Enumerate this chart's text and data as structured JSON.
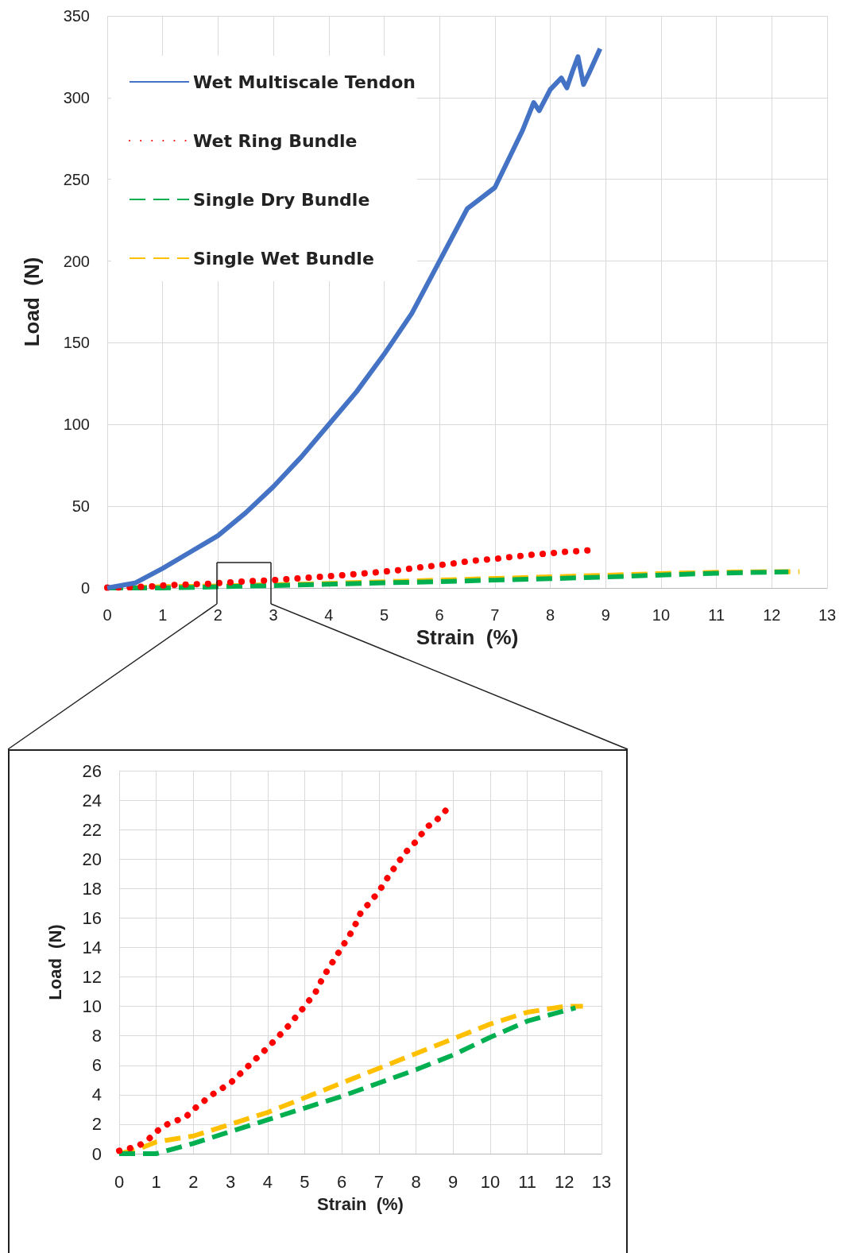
{
  "chart_data": [
    {
      "type": "line",
      "xlabel": "Strain  (%)",
      "ylabel": "Load  (N)",
      "xlim": [
        0,
        13
      ],
      "xticks": [
        0,
        1,
        2,
        3,
        4,
        5,
        6,
        7,
        8,
        9,
        10,
        11,
        12,
        13
      ],
      "ylim": [
        0,
        350
      ],
      "yticks": [
        0,
        50,
        100,
        150,
        200,
        250,
        300,
        350
      ],
      "grid": true,
      "legend": "top left",
      "marker": "none",
      "series": [
        {
          "name": "Wet Multiscale Tendon",
          "color": "#4472c4",
          "line_style": "solid",
          "x": [
            0,
            0.5,
            1,
            1.5,
            2,
            2.5,
            3,
            3.5,
            4,
            4.5,
            5,
            5.5,
            6,
            6.5,
            7,
            7.5,
            7.7,
            7.8,
            8,
            8.2,
            8.3,
            8.4,
            8.5,
            8.6,
            8.7,
            8.9
          ],
          "values": [
            0,
            3,
            12,
            22,
            32,
            46,
            62,
            80,
            100,
            120,
            143,
            168,
            200,
            232,
            245,
            280,
            297,
            292,
            305,
            312,
            306,
            316,
            325,
            308,
            315,
            330
          ]
        },
        {
          "name": "Wet Ring Bundle",
          "color": "#ff0000",
          "line_style": "dotted",
          "x": [
            0,
            0.5,
            0.8,
            1,
            1.3,
            1.8,
            2,
            2.5,
            3,
            3.5,
            4,
            4.5,
            5,
            5.3,
            5.5,
            6,
            6.3,
            6.5,
            7,
            7.3,
            7.7,
            8,
            8.3,
            8.5,
            8.8
          ],
          "values": [
            0.2,
            0.5,
            1,
            1.5,
            2,
            2.5,
            3,
            4,
            4.8,
            6,
            7.2,
            8.5,
            10,
            11,
            12,
            14,
            15.2,
            16.3,
            17.8,
            19,
            20.4,
            21.2,
            22.2,
            22.5,
            23.3
          ]
        },
        {
          "name": "Single Dry Bundle",
          "color": "#00b050",
          "line_style": "dashed",
          "x": [
            0,
            1,
            2,
            3,
            4,
            5,
            6,
            7,
            8,
            9,
            10,
            11,
            12,
            12.3
          ],
          "values": [
            0,
            0,
            0.7,
            1.5,
            2.3,
            3.1,
            3.9,
            4.8,
            5.7,
            6.7,
            7.9,
            9,
            9.7,
            9.9
          ]
        },
        {
          "name": "Single Wet Bundle",
          "color": "#ffc000",
          "line_style": "dashed",
          "x": [
            0,
            0.5,
            1,
            2,
            3,
            4,
            5,
            6,
            7,
            8,
            9,
            10,
            11,
            12,
            12.5
          ],
          "values": [
            0,
            0.3,
            0.8,
            1.2,
            2,
            2.8,
            3.8,
            4.8,
            5.8,
            6.8,
            7.8,
            8.8,
            9.6,
            10,
            10
          ]
        }
      ]
    },
    {
      "type": "line",
      "xlabel": "Strain  (%)",
      "ylabel": "Load  (N)",
      "xlim": [
        0,
        13
      ],
      "xticks": [
        0,
        1,
        2,
        3,
        4,
        5,
        6,
        7,
        8,
        9,
        10,
        11,
        12,
        13
      ],
      "ylim": [
        0,
        26
      ],
      "yticks": [
        0,
        2,
        4,
        6,
        8,
        10,
        12,
        14,
        16,
        18,
        20,
        22,
        24,
        26
      ],
      "grid": true,
      "marker": "none",
      "series": [
        {
          "color": "#ff0000",
          "line_style": "dotted",
          "x": [
            0,
            0.5,
            0.8,
            1,
            1.3,
            1.8,
            2,
            2.5,
            3,
            3.5,
            4,
            4.5,
            5,
            5.3,
            5.5,
            6,
            6.3,
            6.5,
            7,
            7.3,
            7.7,
            8,
            8.3,
            8.5,
            8.8
          ],
          "values": [
            0.2,
            0.5,
            1,
            1.5,
            2,
            2.5,
            3,
            4,
            4.8,
            6,
            7.2,
            8.5,
            10,
            11,
            12,
            14,
            15.2,
            16.3,
            17.8,
            19,
            20.4,
            21.2,
            22.2,
            22.5,
            23.3
          ]
        },
        {
          "color": "#00b050",
          "line_style": "dashed",
          "x": [
            0,
            1,
            2,
            3,
            4,
            5,
            6,
            7,
            8,
            9,
            10,
            11,
            12,
            12.3
          ],
          "values": [
            0,
            0,
            0.7,
            1.5,
            2.3,
            3.1,
            3.9,
            4.8,
            5.7,
            6.7,
            7.9,
            9,
            9.7,
            9.9
          ]
        },
        {
          "color": "#ffc000",
          "line_style": "dashed",
          "x": [
            0,
            0.5,
            1,
            2,
            3,
            4,
            5,
            6,
            7,
            8,
            9,
            10,
            11,
            12,
            12.5
          ],
          "values": [
            0,
            0.3,
            0.8,
            1.2,
            2,
            2.8,
            3.8,
            4.8,
            5.8,
            6.8,
            7.8,
            8.8,
            9.6,
            10,
            10
          ]
        }
      ]
    }
  ]
}
